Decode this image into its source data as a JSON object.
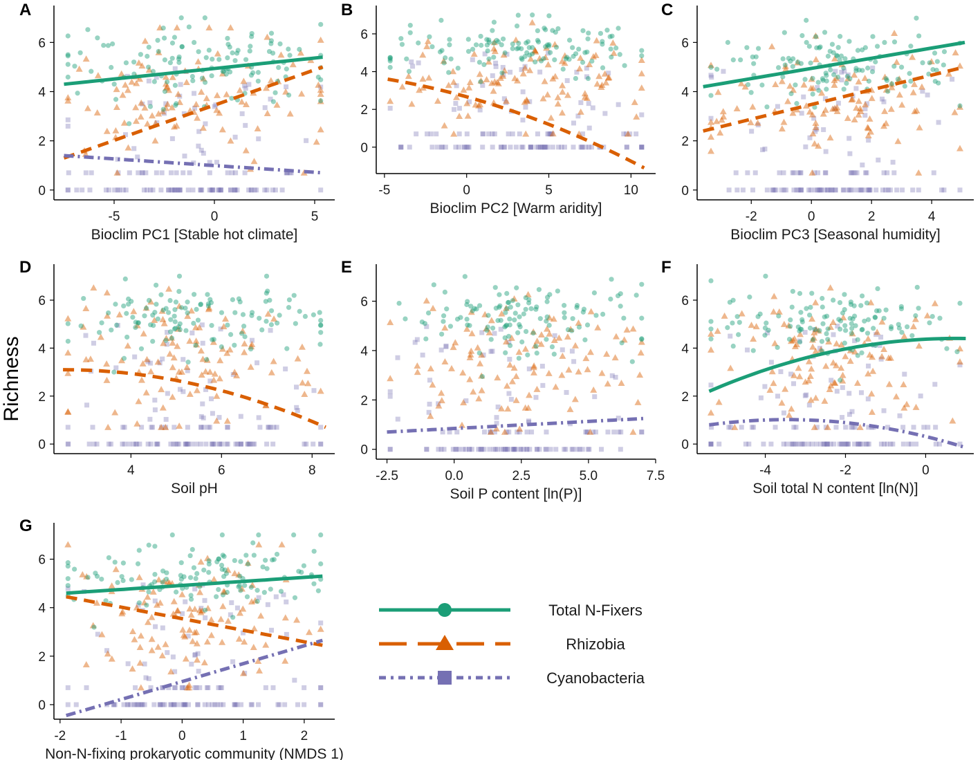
{
  "y_title": "Richness",
  "colors": {
    "nfix": "#1b9e77",
    "rhiz": "#d95f02",
    "cyan": "#7570b3"
  },
  "legend": [
    {
      "label": "Total N-Fixers",
      "series": "nfix"
    },
    {
      "label": "Rhizobia",
      "series": "rhiz"
    },
    {
      "label": "Cyanobacteria",
      "series": "cyan"
    }
  ],
  "chart_data": [
    {
      "panel": "A",
      "type": "scatter",
      "xlabel": "Bioclim PC1 [Stable hot climate]",
      "ylabel": "Richness",
      "xlim": [
        -8,
        6
      ],
      "ylim": [
        -0.4,
        7.5
      ],
      "xticks": [
        -5,
        0,
        5
      ],
      "xtick_labels": [
        "-5",
        "0",
        "5"
      ],
      "yticks": [
        0,
        2,
        4,
        6
      ],
      "ytick_labels": [
        "0",
        "2",
        "4",
        "6"
      ],
      "series": [
        {
          "name": "Total N-Fixers",
          "fit": "linear",
          "x": [
            -7.5,
            5.4
          ],
          "y": [
            4.3,
            5.4
          ]
        },
        {
          "name": "Rhizobia",
          "fit": "linear",
          "x": [
            -7.5,
            5.4
          ],
          "y": [
            1.3,
            5.0
          ]
        },
        {
          "name": "Cyanobacteria",
          "fit": "linear",
          "x": [
            -7.5,
            5.4
          ],
          "y": [
            1.4,
            0.7
          ]
        }
      ]
    },
    {
      "panel": "B",
      "type": "scatter",
      "xlabel": "Bioclim PC2 [Warm aridity]",
      "ylabel": "Richness",
      "xlim": [
        -5.5,
        11.5
      ],
      "ylim": [
        -1.4,
        7.5
      ],
      "xticks": [
        -5,
        0,
        5,
        10
      ],
      "xtick_labels": [
        "-5",
        "0",
        "5",
        "10"
      ],
      "yticks": [
        0,
        2,
        4,
        6
      ],
      "ytick_labels": [
        "0",
        "2",
        "4",
        "6"
      ],
      "series": [
        {
          "name": "Rhizobia",
          "fit": "quadratic",
          "x": [
            -4.8,
            10.8
          ],
          "y": [
            3.6,
            -1.1
          ]
        }
      ]
    },
    {
      "panel": "C",
      "type": "scatter",
      "xlabel": "Bioclim PC3 [Seasonal humidity]",
      "ylabel": "Richness",
      "xlim": [
        -3.8,
        5.4
      ],
      "ylim": [
        -0.4,
        7.5
      ],
      "xticks": [
        -2,
        0,
        2,
        4
      ],
      "xtick_labels": [
        "-2",
        "0",
        "2",
        "4"
      ],
      "yticks": [
        0,
        2,
        4,
        6
      ],
      "ytick_labels": [
        "0",
        "2",
        "4",
        "6"
      ],
      "series": [
        {
          "name": "Total N-Fixers",
          "fit": "linear",
          "x": [
            -3.6,
            5.1
          ],
          "y": [
            4.2,
            6.0
          ]
        },
        {
          "name": "Rhizobia",
          "fit": "linear",
          "x": [
            -3.6,
            5.1
          ],
          "y": [
            2.4,
            5.0
          ]
        }
      ]
    },
    {
      "panel": "D",
      "type": "scatter",
      "xlabel": "Soil pH",
      "ylabel": "Richness",
      "xlim": [
        2.3,
        8.5
      ],
      "ylim": [
        -0.4,
        7.5
      ],
      "xticks": [
        4,
        6,
        8
      ],
      "xtick_labels": [
        "4",
        "6",
        "8"
      ],
      "yticks": [
        0,
        2,
        4,
        6
      ],
      "ytick_labels": [
        "0",
        "2",
        "4",
        "6"
      ],
      "series": [
        {
          "name": "Rhizobia",
          "fit": "quadratic",
          "x": [
            2.5,
            8.3
          ],
          "y": [
            3.1,
            0.7
          ]
        }
      ]
    },
    {
      "panel": "E",
      "type": "scatter",
      "xlabel": "Soil P content [ln(P)]",
      "ylabel": "Richness",
      "xlim": [
        -2.9,
        7.5
      ],
      "ylim": [
        -0.4,
        7.5
      ],
      "xticks": [
        -2.5,
        0.0,
        2.5,
        5.0,
        7.5
      ],
      "xtick_labels": [
        "-2.5",
        "0.0",
        "2.5",
        "5.0",
        "7.5"
      ],
      "yticks": [
        0,
        2,
        4,
        6
      ],
      "ytick_labels": [
        "0",
        "2",
        "4",
        "6"
      ],
      "series": [
        {
          "name": "Cyanobacteria",
          "fit": "linear",
          "x": [
            -2.5,
            7.1
          ],
          "y": [
            0.7,
            1.25
          ]
        }
      ]
    },
    {
      "panel": "F",
      "type": "scatter",
      "xlabel": "Soil total N content [ln(N)]",
      "ylabel": "Richness",
      "xlim": [
        -5.7,
        1.2
      ],
      "ylim": [
        -0.4,
        7.5
      ],
      "xticks": [
        -4,
        -2,
        0
      ],
      "xtick_labels": [
        "-4",
        "-2",
        "0"
      ],
      "yticks": [
        0,
        2,
        4,
        6
      ],
      "ytick_labels": [
        "0",
        "2",
        "4",
        "6"
      ],
      "series": [
        {
          "name": "Total N-Fixers",
          "fit": "quadratic",
          "x": [
            -5.4,
            1.0
          ],
          "y": [
            2.2,
            4.4
          ]
        },
        {
          "name": "Cyanobacteria",
          "fit": "quadratic",
          "x": [
            -5.4,
            1.0
          ],
          "y": [
            0.8,
            -0.15
          ]
        }
      ]
    },
    {
      "panel": "G",
      "type": "scatter",
      "xlabel": "Non-N-fixing prokaryotic community (NMDS 1)",
      "ylabel": "Richness",
      "xlim": [
        -2.1,
        2.5
      ],
      "ylim": [
        -0.6,
        7.5
      ],
      "xticks": [
        -2,
        -1,
        0,
        1,
        2
      ],
      "xtick_labels": [
        "-2",
        "-1",
        "0",
        "1",
        "2"
      ],
      "yticks": [
        0,
        2,
        4,
        6
      ],
      "ytick_labels": [
        "0",
        "2",
        "4",
        "6"
      ],
      "series": [
        {
          "name": "Total N-Fixers",
          "fit": "linear",
          "x": [
            -1.9,
            2.3
          ],
          "y": [
            4.6,
            5.3
          ]
        },
        {
          "name": "Rhizobia",
          "fit": "linear",
          "x": [
            -1.9,
            2.3
          ],
          "y": [
            4.45,
            2.45
          ]
        },
        {
          "name": "Cyanobacteria",
          "fit": "linear",
          "x": [
            -1.9,
            2.3
          ],
          "y": [
            -0.45,
            2.65
          ]
        }
      ]
    }
  ]
}
